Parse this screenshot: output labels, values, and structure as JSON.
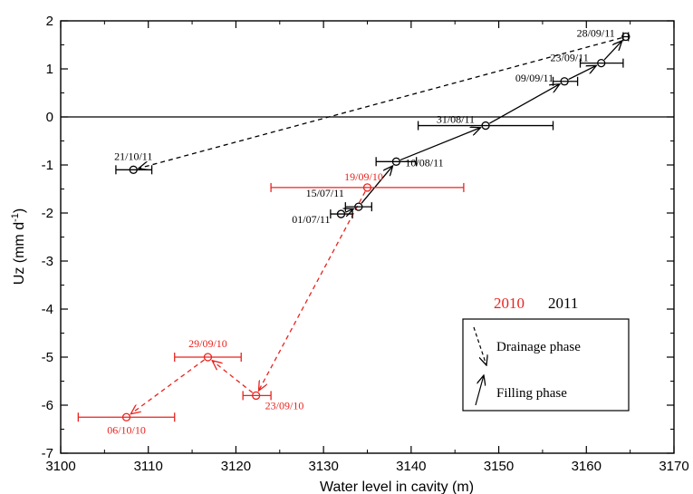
{
  "chart_data": {
    "type": "scatter",
    "title": "",
    "xlabel": "Water level in cavity (m)",
    "ylabel_main": "Uz (mm d",
    "ylabel_sup": "-1",
    "ylabel_close": ")",
    "xlim": [
      3100,
      3170
    ],
    "ylim": [
      -7,
      2
    ],
    "xticks": [
      3100,
      3110,
      3120,
      3130,
      3140,
      3150,
      3160,
      3170
    ],
    "yticks": [
      -7,
      -6,
      -5,
      -4,
      -3,
      -2,
      -1,
      0,
      1,
      2
    ],
    "zero_line": true,
    "year_labels": [
      {
        "text": "2010",
        "color": "#e8231f"
      },
      {
        "text": "2011",
        "color": "#000000"
      }
    ],
    "legend": {
      "position": "bottom-right",
      "items": [
        {
          "label": "Drainage phase",
          "style": "dashed-arrow"
        },
        {
          "label": "Filling phase",
          "style": "solid-arrow"
        }
      ]
    },
    "series": [
      {
        "year": "2010",
        "color": "#e8231f",
        "points": [
          {
            "label": "19/09/10",
            "x": 3135,
            "y": -1.47,
            "xerr": [
              3124,
              3146
            ]
          },
          {
            "label": "23/09/10",
            "x": 3122.3,
            "y": -5.8,
            "xerr": [
              3120.8,
              3124
            ]
          },
          {
            "label": "29/09/10",
            "x": 3116.8,
            "y": -5.0,
            "xerr": [
              3113,
              3120.6
            ]
          },
          {
            "label": "06/10/10",
            "x": 3107.5,
            "y": -6.25,
            "xerr": [
              3102,
              3113
            ]
          }
        ]
      },
      {
        "year": "2011",
        "color": "#000000",
        "points": [
          {
            "label": "01/07/11",
            "x": 3132,
            "y": -2.02,
            "xerr": [
              3130.8,
              3133.3
            ]
          },
          {
            "label": "15/07/11",
            "x": 3134,
            "y": -1.87,
            "xerr": [
              3132.5,
              3135.5
            ]
          },
          {
            "label": "10/08/11",
            "x": 3138.3,
            "y": -0.93,
            "xerr": [
              3136,
              3140.6
            ]
          },
          {
            "label": "31/08/11",
            "x": 3148.5,
            "y": -0.18,
            "xerr": [
              3140.8,
              3156.2
            ]
          },
          {
            "label": "09/09/11",
            "x": 3157.5,
            "y": 0.74,
            "xerr": [
              3156.2,
              3159
            ]
          },
          {
            "label": "23/09/11",
            "x": 3161.7,
            "y": 1.12,
            "xerr": [
              3159.3,
              3164.2
            ]
          },
          {
            "label": "28/09/11",
            "x": 3164.5,
            "y": 1.67,
            "xerr": [
              3164.2,
              3164.8
            ]
          },
          {
            "label": "21/10/11",
            "x": 3108.3,
            "y": -1.1,
            "xerr": [
              3106.3,
              3110.4
            ]
          }
        ]
      }
    ],
    "connections": [
      {
        "from": [
          3135,
          -1.47
        ],
        "to": [
          3122.3,
          -5.8
        ],
        "style": "dashed",
        "color": "#e8231f"
      },
      {
        "from": [
          3122.3,
          -5.8
        ],
        "to": [
          3116.8,
          -5.0
        ],
        "style": "dashed",
        "color": "#e8231f"
      },
      {
        "from": [
          3116.8,
          -5.0
        ],
        "to": [
          3107.5,
          -6.25
        ],
        "style": "dashed",
        "color": "#e8231f"
      },
      {
        "from": [
          3132,
          -2.02
        ],
        "to": [
          3134,
          -1.87
        ],
        "style": "solid",
        "color": "#000000"
      },
      {
        "from": [
          3134,
          -1.87
        ],
        "to": [
          3138.3,
          -0.93
        ],
        "style": "solid",
        "color": "#000000"
      },
      {
        "from": [
          3138.3,
          -0.93
        ],
        "to": [
          3148.5,
          -0.18
        ],
        "style": "solid",
        "color": "#000000"
      },
      {
        "from": [
          3148.5,
          -0.18
        ],
        "to": [
          3157.5,
          0.74
        ],
        "style": "solid",
        "color": "#000000"
      },
      {
        "from": [
          3157.5,
          0.74
        ],
        "to": [
          3161.7,
          1.12
        ],
        "style": "solid",
        "color": "#000000"
      },
      {
        "from": [
          3161.7,
          1.12
        ],
        "to": [
          3164.5,
          1.67
        ],
        "style": "solid",
        "color": "#000000"
      },
      {
        "from": [
          3164.5,
          1.67
        ],
        "to": [
          3108.3,
          -1.1
        ],
        "style": "dashed",
        "color": "#000000"
      }
    ]
  }
}
